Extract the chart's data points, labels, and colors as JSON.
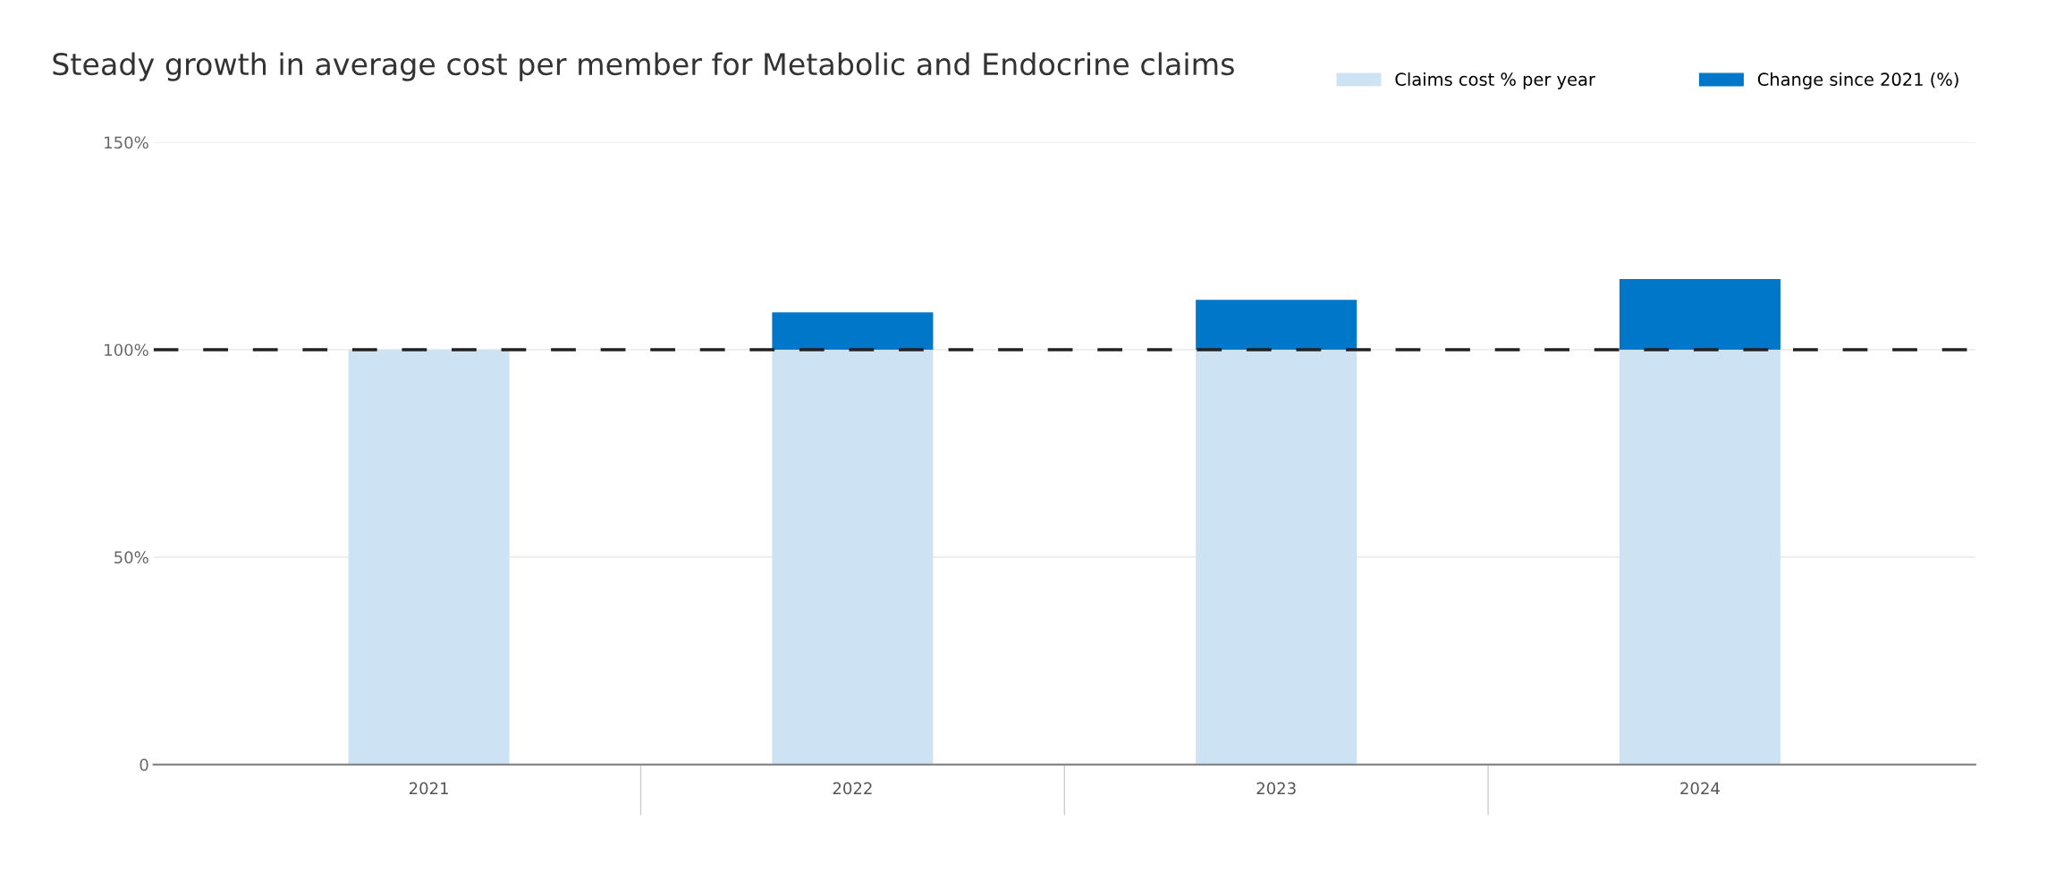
{
  "chart_data": {
    "type": "bar",
    "title": "Steady growth in average cost per member for Metabolic and Endocrine claims",
    "categories": [
      "2021",
      "2022",
      "2023",
      "2024"
    ],
    "stacked": true,
    "series": [
      {
        "name": "Claims cost % per year",
        "color": "#cde3f3",
        "values": [
          100,
          100,
          100,
          100
        ]
      },
      {
        "name": "Change since 2021 (%)",
        "color": "#0077c8",
        "values": [
          0,
          9,
          12,
          17
        ]
      }
    ],
    "ylim": [
      0,
      150
    ],
    "yticks": [
      {
        "value": 0,
        "label": "0"
      },
      {
        "value": 50,
        "label": "50%"
      },
      {
        "value": 100,
        "label": "100%"
      },
      {
        "value": 150,
        "label": "150%"
      }
    ],
    "ref_lines": [
      {
        "axis": "y",
        "value": 100,
        "label": null,
        "color": "#222222",
        "line_style": "dashed"
      }
    ],
    "grid": "y",
    "legend": "top right"
  }
}
